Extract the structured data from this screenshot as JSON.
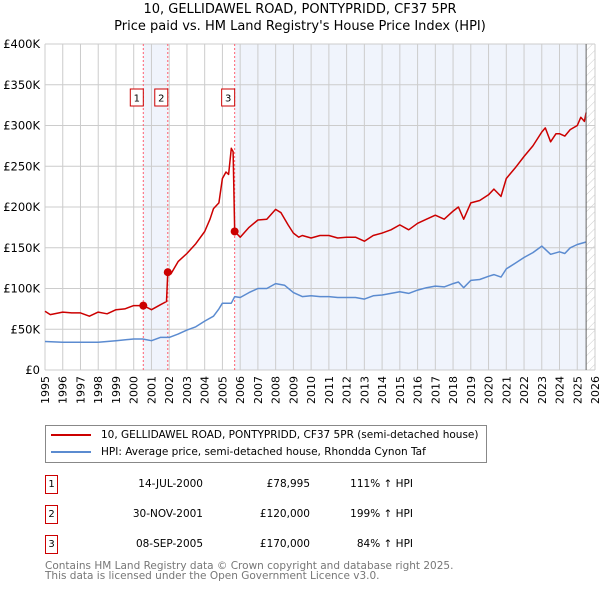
{
  "chart_data": {
    "type": "line",
    "title": "10, GELLIDAWEL ROAD, PONTYPRIDD, CF37 5PR",
    "subtitle": "Price paid vs. HM Land Registry's House Price Index (HPI)",
    "xlim": [
      1995,
      2026
    ],
    "ylim": [
      0,
      400000
    ],
    "x_ticks": [
      "1995",
      "1996",
      "1997",
      "1998",
      "1999",
      "2000",
      "2001",
      "2002",
      "2003",
      "2004",
      "2005",
      "2006",
      "2007",
      "2008",
      "2009",
      "2010",
      "2011",
      "2012",
      "2013",
      "2014",
      "2015",
      "2016",
      "2017",
      "2018",
      "2019",
      "2020",
      "2021",
      "2022",
      "2023",
      "2024",
      "2025",
      "2026"
    ],
    "y_ticks": [
      {
        "v": 0,
        "label": "£0"
      },
      {
        "v": 50000,
        "label": "£50K"
      },
      {
        "v": 100000,
        "label": "£100K"
      },
      {
        "v": 150000,
        "label": "£150K"
      },
      {
        "v": 200000,
        "label": "£200K"
      },
      {
        "v": 250000,
        "label": "£250K"
      },
      {
        "v": 300000,
        "label": "£300K"
      },
      {
        "v": 350000,
        "label": "£350K"
      },
      {
        "v": 400000,
        "label": "£400K"
      }
    ],
    "grid": true,
    "data_end_year": 2025.5,
    "series": [
      {
        "name": "10, GELLIDAWEL ROAD, PONTYPRIDD, CF37 5PR (semi-detached house)",
        "color": "#cc0000",
        "x": [
          1995,
          1995.3,
          1996,
          1996.5,
          1997,
          1997.5,
          1998,
          1998.5,
          1999,
          1999.5,
          2000,
          2000.54,
          2001,
          2001.5,
          2001.85,
          2001.92,
          2002.1,
          2002.5,
          2003,
          2003.5,
          2004,
          2004.3,
          2004.5,
          2004.8,
          2005,
          2005.2,
          2005.35,
          2005.5,
          2005.6,
          2005.69,
          2006,
          2006.5,
          2007,
          2007.5,
          2008,
          2008.3,
          2008.7,
          2009,
          2009.3,
          2009.5,
          2010,
          2010.5,
          2011,
          2011.5,
          2012,
          2012.5,
          2013,
          2013.5,
          2014,
          2014.5,
          2015,
          2015.5,
          2016,
          2016.5,
          2017,
          2017.5,
          2018,
          2018.3,
          2018.6,
          2019,
          2019.5,
          2020,
          2020.3,
          2020.7,
          2021,
          2021.5,
          2022,
          2022.5,
          2023,
          2023.2,
          2023.5,
          2023.8,
          2024,
          2024.3,
          2024.6,
          2025,
          2025.2,
          2025.4,
          2025.5
        ],
        "y": [
          72000,
          68000,
          71000,
          70000,
          70000,
          66000,
          71000,
          69000,
          74000,
          75000,
          79000,
          78995,
          74000,
          80000,
          84000,
          120000,
          118000,
          133000,
          143000,
          155000,
          170000,
          185000,
          198000,
          205000,
          235000,
          243000,
          240000,
          272000,
          268000,
          170000,
          163000,
          175000,
          184000,
          185000,
          197000,
          193000,
          178000,
          168000,
          163000,
          165000,
          162000,
          165000,
          165000,
          162000,
          163000,
          163000,
          158000,
          165000,
          168000,
          172000,
          178000,
          172000,
          180000,
          185000,
          190000,
          185000,
          195000,
          200000,
          185000,
          205000,
          208000,
          215000,
          222000,
          213000,
          235000,
          248000,
          262000,
          275000,
          292000,
          297000,
          280000,
          290000,
          290000,
          287000,
          295000,
          300000,
          310000,
          305000,
          316000
        ]
      },
      {
        "name": "HPI: Average price, semi-detached house, Rhondda Cynon Taf",
        "color": "#5b8bd0",
        "x": [
          1995,
          1996,
          1997,
          1998,
          1999,
          2000,
          2000.5,
          2001,
          2001.5,
          2002,
          2002.5,
          2003,
          2003.5,
          2004,
          2004.5,
          2004.8,
          2005,
          2005.5,
          2005.69,
          2006,
          2006.5,
          2007,
          2007.5,
          2008,
          2008.5,
          2009,
          2009.5,
          2010,
          2010.5,
          2011,
          2011.5,
          2012,
          2012.5,
          2013,
          2013.5,
          2014,
          2014.5,
          2015,
          2015.5,
          2016,
          2016.5,
          2017,
          2017.5,
          2018,
          2018.3,
          2018.6,
          2019,
          2019.5,
          2020,
          2020.3,
          2020.7,
          2021,
          2021.5,
          2022,
          2022.5,
          2023,
          2023.5,
          2024,
          2024.3,
          2024.6,
          2025,
          2025.5
        ],
        "y": [
          35000,
          34000,
          34000,
          34000,
          36000,
          38000,
          38000,
          36000,
          40000,
          40000,
          44000,
          49000,
          53000,
          60000,
          66000,
          75000,
          82000,
          82000,
          90000,
          89000,
          95000,
          100000,
          100000,
          106000,
          104000,
          95000,
          90000,
          91000,
          90000,
          90000,
          89000,
          89000,
          89000,
          87000,
          91000,
          92000,
          94000,
          96000,
          94000,
          98000,
          101000,
          103000,
          102000,
          106000,
          108000,
          101000,
          110000,
          111000,
          115000,
          117000,
          114000,
          124000,
          131000,
          138000,
          144000,
          152000,
          142000,
          145000,
          143000,
          150000,
          154000,
          157000
        ]
      }
    ],
    "sales": [
      {
        "label": "1",
        "x": 2000.54,
        "y": 78995
      },
      {
        "label": "2",
        "x": 2001.92,
        "y": 120000
      },
      {
        "label": "3",
        "x": 2005.69,
        "y": 170000
      }
    ]
  },
  "legend": {
    "red": "10, GELLIDAWEL ROAD, PONTYPRIDD, CF37 5PR (semi-detached house)",
    "blue": "HPI: Average price, semi-detached house, Rhondda Cynon Taf"
  },
  "transactions": [
    {
      "num": "1",
      "date": "14-JUL-2000",
      "price": "£78,995",
      "hpi": "111% ↑ HPI"
    },
    {
      "num": "2",
      "date": "30-NOV-2001",
      "price": "£120,000",
      "hpi": "199% ↑ HPI"
    },
    {
      "num": "3",
      "date": "08-SEP-2005",
      "price": "£170,000",
      "hpi": "84% ↑ HPI"
    }
  ],
  "footer": {
    "line1": "Contains HM Land Registry data © Crown copyright and database right 2025.",
    "line2": "This data is licensed under the Open Government Licence v3.0."
  }
}
